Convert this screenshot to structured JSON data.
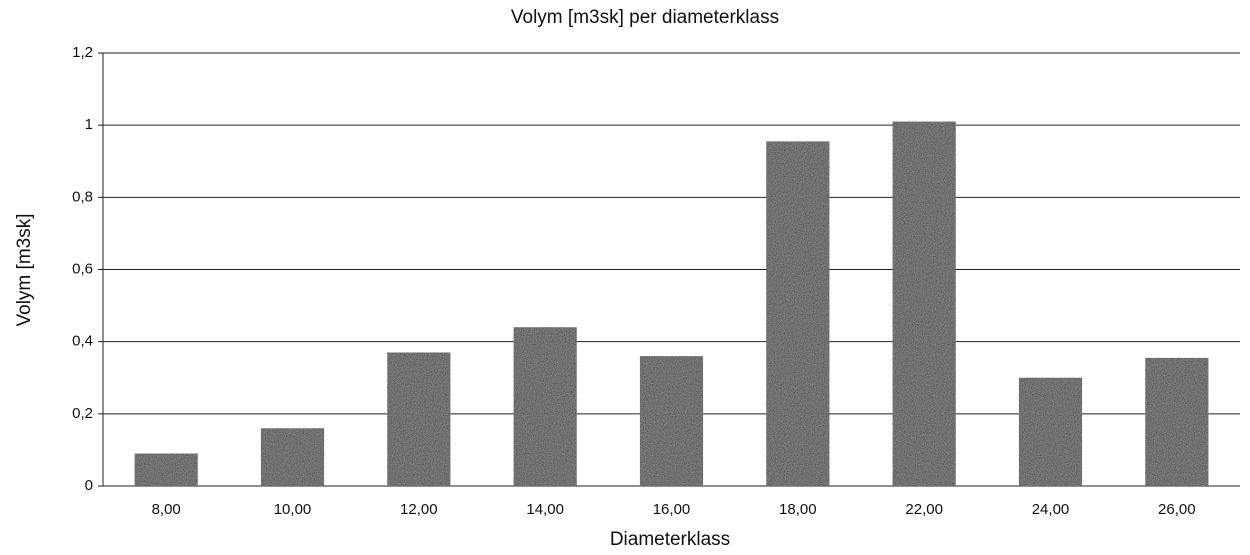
{
  "chart_data": {
    "type": "bar",
    "title": "Volym [m3sk] per diameterklass",
    "x_label": "Diameterklass",
    "y_label": "Volym [m3sk]",
    "categories": [
      "8,00",
      "10,00",
      "12,00",
      "14,00",
      "16,00",
      "18,00",
      "22,00",
      "24,00",
      "26,00"
    ],
    "values": [
      0.09,
      0.16,
      0.37,
      0.44,
      0.36,
      0.955,
      1.01,
      0.3,
      0.355
    ],
    "color": "#3c3c3c",
    "ylim": [
      0,
      1.2
    ],
    "yticks": [
      0,
      {
        "value": 0.2,
        "label": "0,2"
      },
      {
        "value": 0.4,
        "label": "0,4"
      },
      {
        "value": 0.6,
        "label": "0,6"
      },
      {
        "value": 0.8,
        "label": "0,8"
      },
      1,
      {
        "value": 1.2,
        "label": "1,2"
      }
    ],
    "grid": true
  }
}
